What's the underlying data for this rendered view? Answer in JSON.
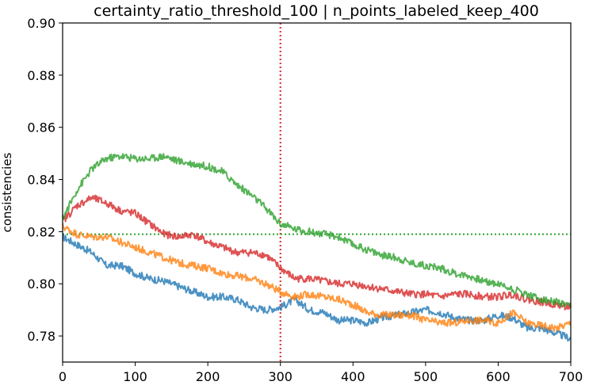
{
  "chart_data": {
    "type": "line",
    "title": "certainty_ratio_threshold_100 | n_points_labeled_keep_400",
    "xlabel": "",
    "ylabel": "consistencies",
    "xlim": [
      0,
      700
    ],
    "ylim": [
      0.77,
      0.9
    ],
    "xticks": [
      0,
      100,
      200,
      300,
      400,
      500,
      600,
      700
    ],
    "yticks": [
      0.78,
      0.8,
      0.82,
      0.84,
      0.86,
      0.88,
      0.9
    ],
    "grid": false,
    "legend": "none",
    "reference_lines": [
      {
        "orientation": "vertical",
        "value": 300,
        "color": "#d62728",
        "style": "dotted"
      },
      {
        "orientation": "horizontal",
        "value": 0.819,
        "color": "#2ca02c",
        "style": "dotted"
      }
    ],
    "series": [
      {
        "color": "#1f77b4",
        "x": [
          0,
          20,
          40,
          60,
          80,
          100,
          120,
          140,
          160,
          180,
          200,
          220,
          240,
          260,
          280,
          300,
          320,
          340,
          360,
          380,
          400,
          420,
          440,
          460,
          480,
          500,
          520,
          540,
          560,
          580,
          600,
          620,
          640,
          660,
          680,
          700
        ],
        "values": [
          0.818,
          0.815,
          0.812,
          0.807,
          0.807,
          0.804,
          0.802,
          0.801,
          0.799,
          0.797,
          0.795,
          0.795,
          0.794,
          0.791,
          0.79,
          0.791,
          0.794,
          0.79,
          0.789,
          0.786,
          0.786,
          0.785,
          0.787,
          0.788,
          0.789,
          0.79,
          0.789,
          0.787,
          0.786,
          0.786,
          0.788,
          0.787,
          0.783,
          0.783,
          0.781,
          0.779
        ]
      },
      {
        "color": "#ff7f0e",
        "x": [
          0,
          20,
          40,
          60,
          80,
          100,
          120,
          140,
          160,
          180,
          200,
          220,
          240,
          260,
          280,
          300,
          320,
          340,
          360,
          380,
          400,
          420,
          440,
          460,
          480,
          500,
          520,
          540,
          560,
          580,
          600,
          620,
          640,
          660,
          680,
          700
        ],
        "values": [
          0.822,
          0.819,
          0.818,
          0.818,
          0.816,
          0.814,
          0.812,
          0.81,
          0.808,
          0.807,
          0.806,
          0.804,
          0.803,
          0.802,
          0.8,
          0.797,
          0.795,
          0.796,
          0.795,
          0.794,
          0.792,
          0.789,
          0.788,
          0.788,
          0.788,
          0.786,
          0.785,
          0.785,
          0.786,
          0.786,
          0.785,
          0.789,
          0.785,
          0.784,
          0.783,
          0.785
        ]
      },
      {
        "color": "#d62728",
        "x": [
          0,
          20,
          40,
          60,
          80,
          100,
          120,
          140,
          160,
          180,
          200,
          220,
          240,
          260,
          280,
          300,
          320,
          340,
          360,
          380,
          400,
          420,
          440,
          460,
          480,
          500,
          520,
          540,
          560,
          580,
          600,
          620,
          640,
          660,
          680,
          700
        ],
        "values": [
          0.824,
          0.83,
          0.833,
          0.831,
          0.828,
          0.827,
          0.823,
          0.819,
          0.818,
          0.819,
          0.816,
          0.814,
          0.812,
          0.812,
          0.811,
          0.806,
          0.802,
          0.802,
          0.801,
          0.8,
          0.8,
          0.799,
          0.798,
          0.797,
          0.796,
          0.796,
          0.795,
          0.796,
          0.796,
          0.795,
          0.795,
          0.796,
          0.794,
          0.793,
          0.792,
          0.791
        ]
      },
      {
        "color": "#2ca02c",
        "x": [
          0,
          20,
          40,
          60,
          80,
          100,
          120,
          140,
          160,
          180,
          200,
          220,
          240,
          260,
          280,
          300,
          320,
          340,
          360,
          380,
          400,
          420,
          440,
          460,
          480,
          500,
          520,
          540,
          560,
          580,
          600,
          620,
          640,
          660,
          680,
          700
        ],
        "values": [
          0.825,
          0.836,
          0.844,
          0.848,
          0.849,
          0.848,
          0.848,
          0.849,
          0.847,
          0.846,
          0.845,
          0.843,
          0.838,
          0.834,
          0.829,
          0.823,
          0.821,
          0.82,
          0.819,
          0.818,
          0.815,
          0.813,
          0.811,
          0.81,
          0.808,
          0.807,
          0.806,
          0.804,
          0.803,
          0.801,
          0.8,
          0.798,
          0.796,
          0.794,
          0.793,
          0.791
        ]
      }
    ]
  }
}
